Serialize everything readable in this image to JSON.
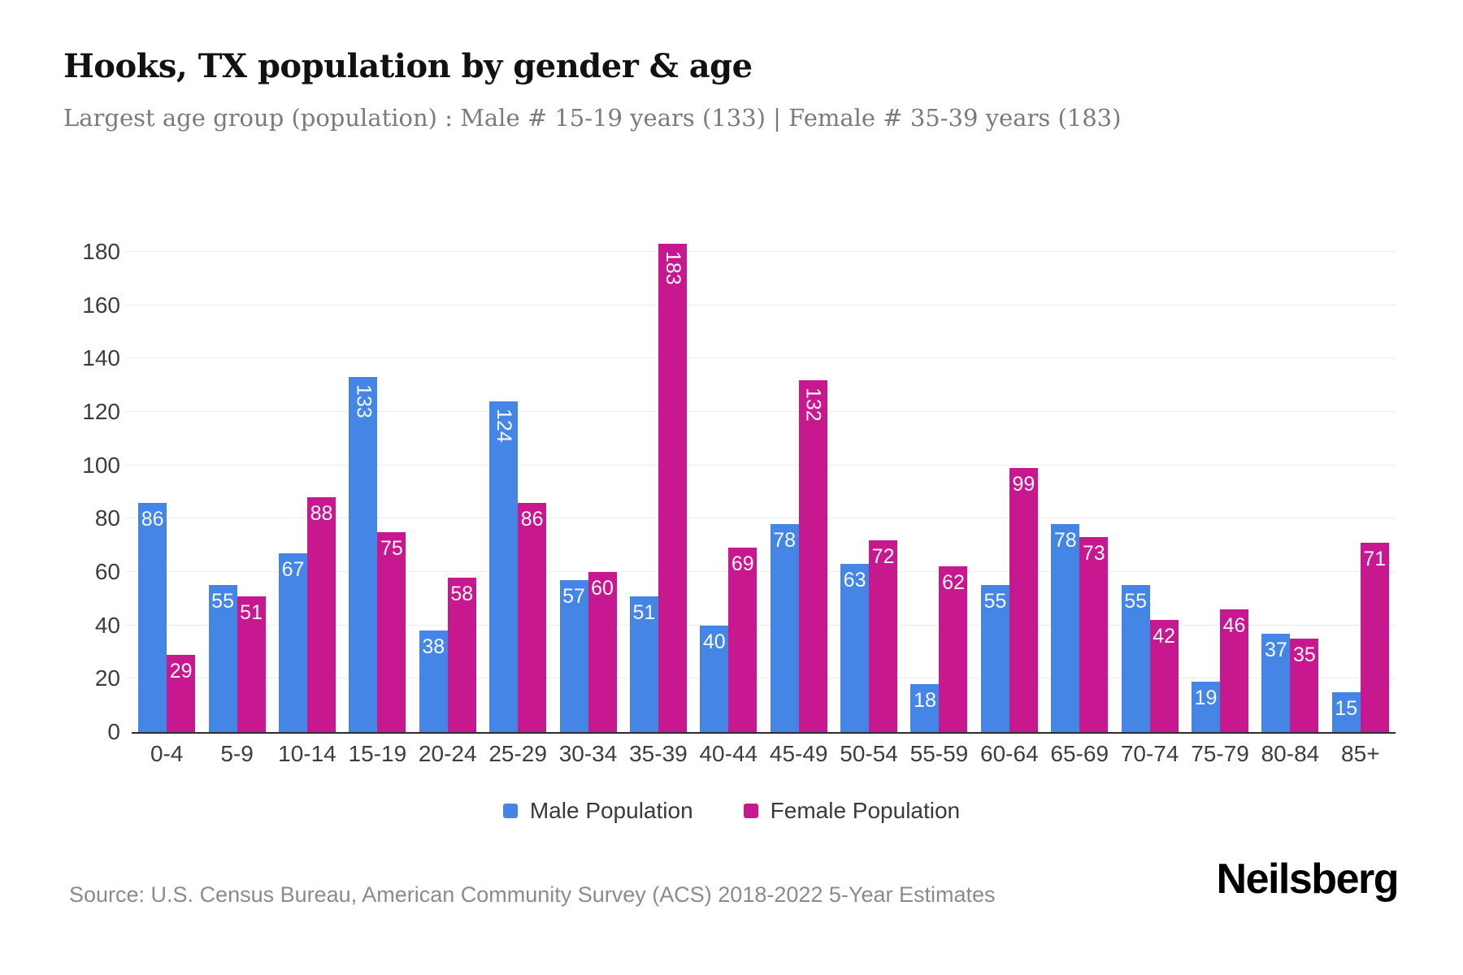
{
  "header": {
    "title": "Hooks, TX population by gender & age",
    "subtitle": "Largest age group (population) : Male # 15-19 years (133) | Female # 35-39 years (183)"
  },
  "chart_data": {
    "type": "bar",
    "title": "Hooks, TX population by gender & age",
    "categories": [
      "0-4",
      "5-9",
      "10-14",
      "15-19",
      "20-24",
      "25-29",
      "30-34",
      "35-39",
      "40-44",
      "45-49",
      "50-54",
      "55-59",
      "60-64",
      "65-69",
      "70-74",
      "75-79",
      "80-84",
      "85+"
    ],
    "series": [
      {
        "name": "Male Population",
        "color": "#4485e6",
        "values": [
          86,
          55,
          67,
          133,
          38,
          124,
          57,
          51,
          40,
          78,
          63,
          18,
          55,
          78,
          55,
          19,
          37,
          15
        ]
      },
      {
        "name": "Female Population",
        "color": "#c7188f",
        "values": [
          29,
          51,
          88,
          75,
          58,
          86,
          60,
          183,
          69,
          132,
          72,
          62,
          99,
          73,
          42,
          46,
          35,
          71
        ]
      }
    ],
    "xlabel": "",
    "ylabel": "",
    "ylim": [
      0,
      180
    ],
    "ytick_step": 20,
    "grid": "horizontal",
    "legend_position": "bottom",
    "value_labels": "inside-top",
    "rotate_value_labels_at": 100,
    "colors": {
      "male": "#4485e6",
      "female": "#c7188f",
      "gridline": "#ededed",
      "axis_line": "#2e2e2e",
      "tick_text": "#3d3d3d",
      "bar_value_text": "#ffffff"
    }
  },
  "footer": {
    "source": "Source: U.S. Census Bureau, American Community Survey (ACS) 2018-2022 5-Year Estimates",
    "brand": "Neilsberg"
  }
}
